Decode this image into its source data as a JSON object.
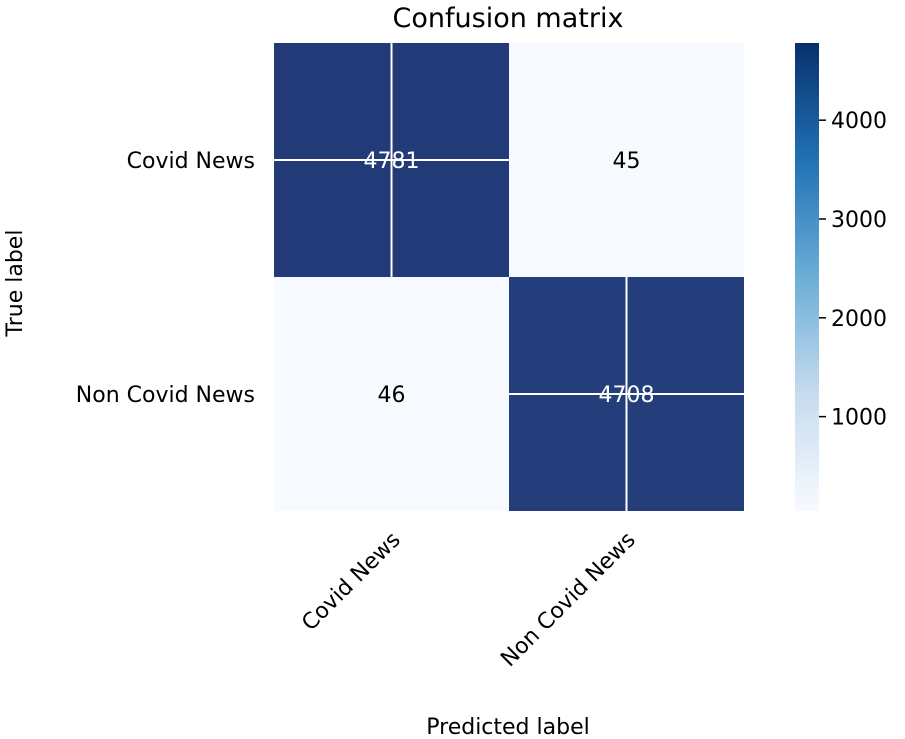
{
  "chart_data": {
    "type": "heatmap",
    "title": "Confusion matrix",
    "xlabel": "Predicted label",
    "ylabel": "True label",
    "x_categories": [
      "Covid News",
      "Non Covid News"
    ],
    "y_categories": [
      "Covid News",
      "Non Covid News"
    ],
    "values": [
      [
        4781,
        45
      ],
      [
        46,
        4708
      ]
    ],
    "colormap": "Blues",
    "colorbar": {
      "range": [
        45,
        4781
      ],
      "ticks": [
        1000,
        2000,
        3000,
        4000
      ],
      "tick_labels": [
        "1000",
        "2000",
        "3000",
        "4000"
      ]
    },
    "grid": true
  },
  "colors": {
    "low": "#f7fbff",
    "mid": "#6baed6",
    "high": "#08306b",
    "dark_cell": "#223a78",
    "light_text": "#ffffff",
    "dark_text": "#000000"
  }
}
